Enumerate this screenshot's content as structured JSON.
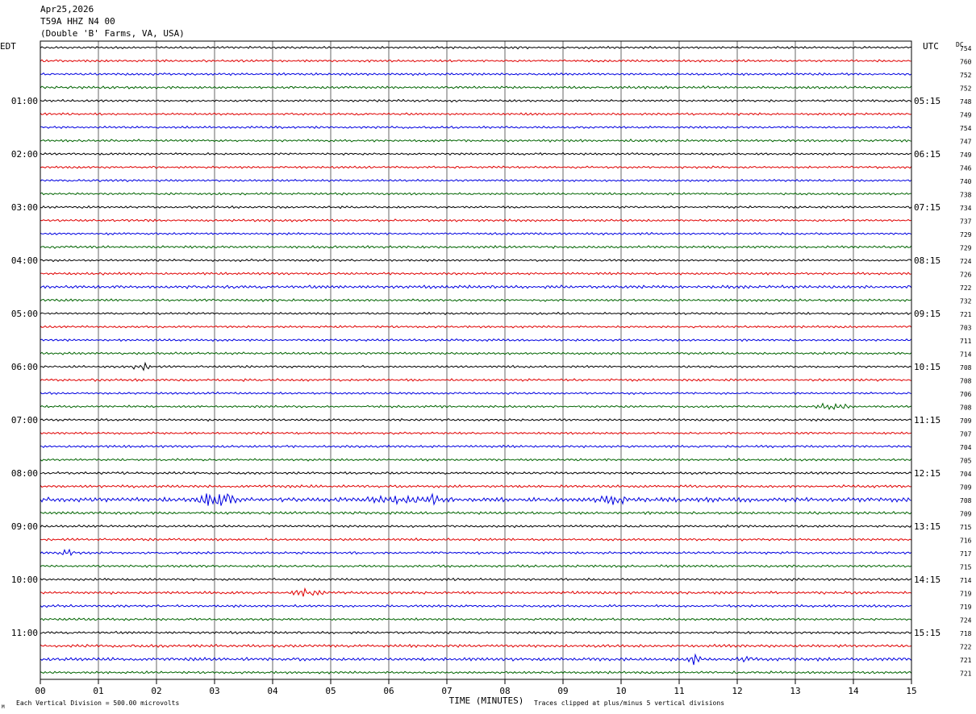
{
  "header": {
    "date": "Apr25,2026",
    "station": "T59A HHZ N4 00",
    "location": "(Double 'B' Farms, VA, USA)"
  },
  "footer": {
    "scale_note": "Each Vertical Division =  500.00 microvolts",
    "clip_note": "Traces clipped at plus/minus 5 vertical divisions",
    "corner_mark": "M"
  },
  "colors": {
    "trace_cycle": [
      "#000000",
      "#e00000",
      "#0000e0",
      "#006400"
    ],
    "grid": "#000000",
    "background": "#ffffff"
  },
  "chart_data": {
    "type": "line",
    "title": "T59A HHZ N4 00",
    "xlabel": "TIME (MINUTES)",
    "left_axis_title": "EDT",
    "right_axis_title": "UTC",
    "dc_label": "DC",
    "xlim": [
      0,
      15
    ],
    "x_ticks": [
      "00",
      "01",
      "02",
      "03",
      "04",
      "05",
      "06",
      "07",
      "08",
      "09",
      "10",
      "11",
      "12",
      "13",
      "14",
      "15"
    ],
    "grid": true,
    "left_hour_labels": [
      "01:00",
      "02:00",
      "03:00",
      "04:00",
      "05:00",
      "06:00",
      "07:00",
      "08:00",
      "09:00",
      "10:00",
      "11:00"
    ],
    "right_hour_labels": [
      "05:15",
      "06:15",
      "07:15",
      "08:15",
      "09:15",
      "10:15",
      "11:15",
      "12:15",
      "13:15",
      "14:15",
      "15:15"
    ],
    "dc_offsets": [
      754,
      760,
      752,
      752,
      748,
      749,
      754,
      747,
      749,
      746,
      740,
      738,
      734,
      737,
      729,
      729,
      724,
      726,
      722,
      732,
      721,
      703,
      711,
      714,
      708,
      708,
      706,
      708,
      709,
      707,
      704,
      705,
      704,
      709,
      708,
      709,
      715,
      716,
      717,
      715,
      714,
      719,
      719,
      724,
      718,
      722,
      721,
      721
    ],
    "noise_level": [
      0.55,
      0.55,
      0.6,
      0.65,
      0.55,
      0.55,
      0.55,
      0.6,
      0.55,
      0.55,
      0.55,
      0.55,
      0.55,
      0.6,
      0.55,
      0.6,
      0.55,
      0.6,
      0.75,
      0.6,
      0.55,
      0.55,
      0.55,
      0.6,
      0.55,
      0.6,
      0.55,
      0.55,
      0.55,
      0.55,
      0.6,
      0.55,
      0.6,
      0.65,
      1.1,
      0.65,
      0.6,
      0.6,
      0.6,
      0.6,
      0.6,
      0.65,
      0.6,
      0.6,
      0.6,
      0.7,
      0.8,
      0.6
    ],
    "events": [
      {
        "trace": 24,
        "start_min": 1.6,
        "end_min": 1.9,
        "amp": 2.5
      },
      {
        "trace": 27,
        "start_min": 13.3,
        "end_min": 14.0,
        "amp": 2.0
      },
      {
        "trace": 34,
        "start_min": 2.7,
        "end_min": 3.4,
        "amp": 5.0
      },
      {
        "trace": 34,
        "start_min": 5.3,
        "end_min": 7.2,
        "amp": 2.4
      },
      {
        "trace": 34,
        "start_min": 6.7,
        "end_min": 6.85,
        "amp": 6.0
      },
      {
        "trace": 34,
        "start_min": 9.5,
        "end_min": 10.2,
        "amp": 2.6
      },
      {
        "trace": 38,
        "start_min": 0.3,
        "end_min": 0.6,
        "amp": 2.0
      },
      {
        "trace": 41,
        "start_min": 4.3,
        "end_min": 4.9,
        "amp": 2.2
      },
      {
        "trace": 46,
        "start_min": 11.1,
        "end_min": 11.4,
        "amp": 3.5
      },
      {
        "trace": 46,
        "start_min": 11.8,
        "end_min": 12.4,
        "amp": 1.6
      }
    ]
  }
}
